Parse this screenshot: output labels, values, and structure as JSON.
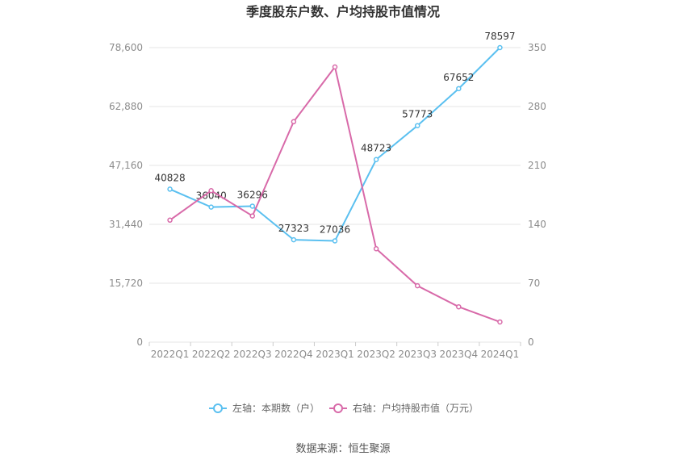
{
  "chart_data": {
    "type": "line",
    "title": "季度股东户数、户均持股市值情况",
    "categories": [
      "2022Q1",
      "2022Q2",
      "2022Q3",
      "2022Q4",
      "2023Q1",
      "2023Q2",
      "2023Q3",
      "2023Q4",
      "2024Q1"
    ],
    "y_left": {
      "ticks": [
        "0",
        "15,720",
        "31,440",
        "47,160",
        "62,880",
        "78,600"
      ],
      "min": 0,
      "max": 78600
    },
    "y_right": {
      "ticks": [
        "0",
        "70",
        "140",
        "210",
        "280",
        "350"
      ],
      "min": 0,
      "max": 350
    },
    "series": [
      {
        "name": "左轴：本期数（户）",
        "axis": "left",
        "color": "#5bc0f0",
        "values": [
          40828,
          36040,
          36296,
          27323,
          27036,
          48723,
          57773,
          67652,
          78597
        ],
        "labels": [
          "40828",
          "36040",
          "36296",
          "27323",
          "27036",
          "48723",
          "57773",
          "67652",
          "78597"
        ]
      },
      {
        "name": "右轴：户均持股市值（万元）",
        "axis": "right",
        "color": "#d86aa9",
        "values": [
          145,
          180,
          150,
          262,
          327,
          111,
          67,
          42,
          24
        ]
      }
    ],
    "grid": true,
    "legend_position": "bottom"
  },
  "footer": {
    "source": "数据来源：恒生聚源"
  }
}
